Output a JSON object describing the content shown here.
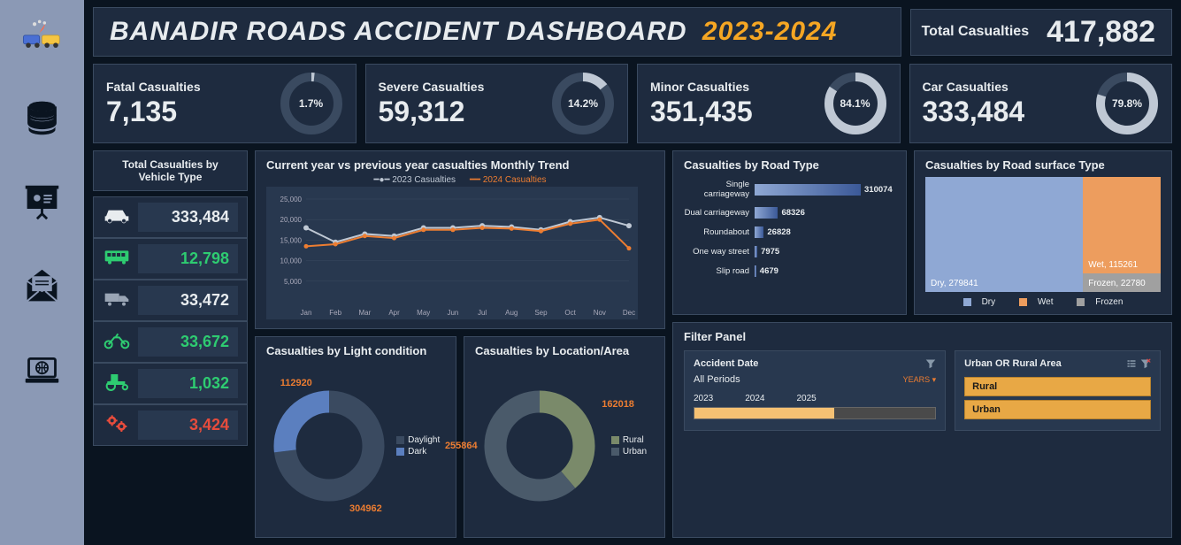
{
  "header": {
    "title_main": "BANADIR ROADS ACCIDENT DASHBOARD",
    "title_year": "2023-2024",
    "total_label": "Total Casualties",
    "total_value": "417,882"
  },
  "kpis": [
    {
      "label": "Fatal Casualties",
      "value": "7,135",
      "pct": "1.7%",
      "pct_num": 1.7,
      "ring": "#bfc8d4"
    },
    {
      "label": "Severe Casualties",
      "value": "59,312",
      "pct": "14.2%",
      "pct_num": 14.2,
      "ring": "#bfc8d4"
    },
    {
      "label": "Minor Casualties",
      "value": "351,435",
      "pct": "84.1%",
      "pct_num": 84.1,
      "ring": "#bfc8d4"
    },
    {
      "label": "Car Casualties",
      "value": "333,484",
      "pct": "79.8%",
      "pct_num": 79.8,
      "ring": "#bfc8d4"
    }
  ],
  "vehicle": {
    "title": "Total Casualties by Vehicle Type",
    "rows": [
      {
        "icon": "car",
        "value": "333,484",
        "color": "#e8ecef"
      },
      {
        "icon": "bus",
        "value": "12,798",
        "color": "#2ecc71"
      },
      {
        "icon": "truck",
        "value": "33,472",
        "color": "#e8ecef"
      },
      {
        "icon": "motorcycle",
        "value": "33,672",
        "color": "#2ecc71"
      },
      {
        "icon": "tractor",
        "value": "1,032",
        "color": "#2ecc71"
      },
      {
        "icon": "gears",
        "value": "3,424",
        "color": "#e74c3c"
      }
    ]
  },
  "trend": {
    "title": "Current year vs previous year casualties Monthly Trend",
    "legend": [
      "2023 Casualties",
      "2024 Casualties"
    ],
    "legend_colors": [
      "#bfc8d4",
      "#ed7d31"
    ],
    "months": [
      "Jan",
      "Feb",
      "Mar",
      "Apr",
      "May",
      "Jun",
      "Jul",
      "Aug",
      "Sep",
      "Oct",
      "Nov",
      "Dec"
    ],
    "ylim": [
      0,
      25000
    ],
    "ytick_step": 5000,
    "y_ticks": [
      "5,000",
      "10,000",
      "15,000",
      "20,000",
      "25,000"
    ],
    "series_2023": [
      18000,
      14500,
      16500,
      16000,
      18000,
      18000,
      18500,
      18200,
      17500,
      19500,
      20500,
      18500
    ],
    "series_2024": [
      13500,
      14000,
      16000,
      15500,
      17500,
      17500,
      18000,
      17800,
      17200,
      19000,
      20000,
      13000
    ],
    "grid_color": "#3a4a60",
    "bg": "#28384f"
  },
  "road_type": {
    "title": "Casualties by Road Type",
    "rows": [
      {
        "label": "Single carriageway",
        "value": 310074,
        "text": "310074"
      },
      {
        "label": "Dual carriageway",
        "value": 68326,
        "text": "68326"
      },
      {
        "label": "Roundabout",
        "value": 26828,
        "text": "26828"
      },
      {
        "label": "One way street",
        "value": 7975,
        "text": "7975"
      },
      {
        "label": "Slip road",
        "value": 4679,
        "text": "4679"
      }
    ],
    "max": 310074
  },
  "surface": {
    "title": "Casualties by Road surface Type",
    "dry": {
      "label": "Dry, 279841",
      "color": "#8fa8d4"
    },
    "wet": {
      "label": "Wet, 115261",
      "color": "#ed9d5e"
    },
    "frozen": {
      "label": "Frozen, 22780",
      "color": "#a0a0a0"
    },
    "legend": [
      "Dry",
      "Wet",
      "Frozen"
    ]
  },
  "light": {
    "title": "Casualties by Light condition",
    "segments": [
      {
        "label": "Daylight",
        "value": 304962,
        "color": "#3a4a60",
        "text": "304962"
      },
      {
        "label": "Dark",
        "value": 112920,
        "color": "#5b7fbf",
        "text": "112920"
      }
    ]
  },
  "location": {
    "title": "Casualties by Location/Area",
    "segments": [
      {
        "label": "Rural",
        "value": 162018,
        "color": "#7a8a6a",
        "text": "162018"
      },
      {
        "label": "Urban",
        "value": 255864,
        "color": "#4a5a6a",
        "text": "255864"
      }
    ]
  },
  "filter": {
    "title": "Filter Panel",
    "date_label": "Accident Date",
    "date_value": "All Periods",
    "years_label": "YEARS",
    "timeline": [
      "2023",
      "2024",
      "2025"
    ],
    "area_label": "Urban OR Rural Area",
    "area_options": [
      "Rural",
      "Urban"
    ]
  }
}
